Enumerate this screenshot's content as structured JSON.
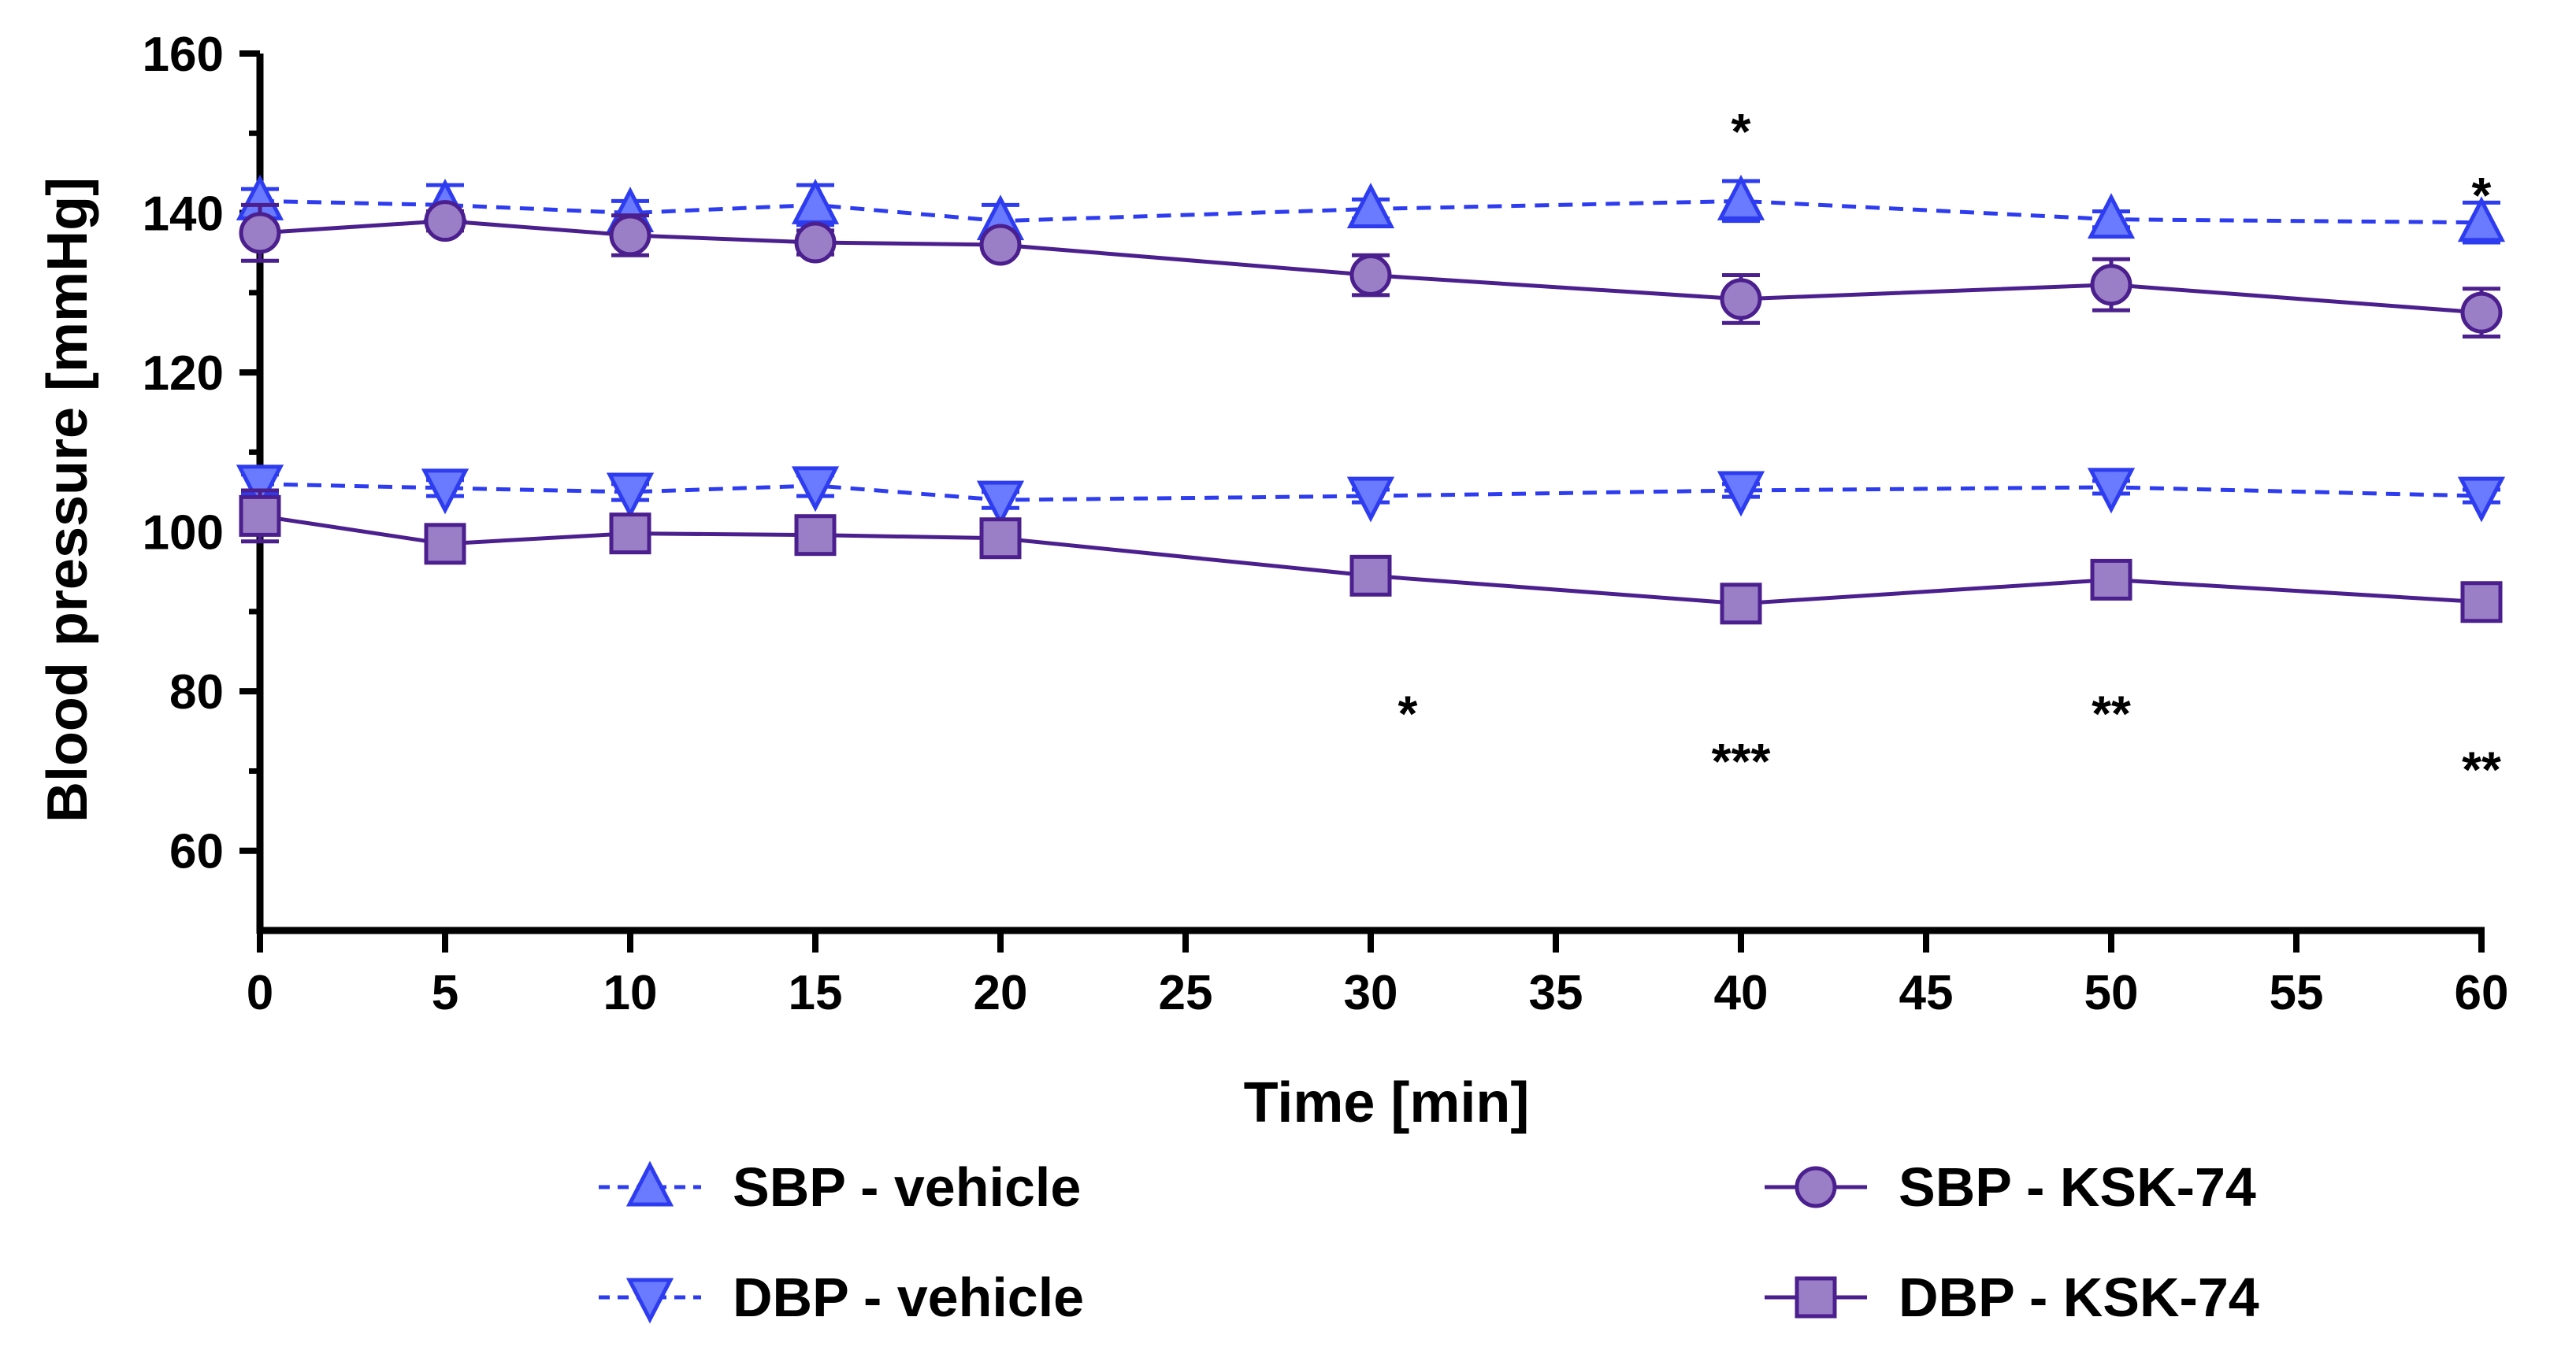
{
  "chart_data": {
    "type": "line",
    "title": "",
    "xlabel": "Time [min]",
    "ylabel": "Blood pressure [mmHg]",
    "xlim": [
      0,
      60
    ],
    "ylim": [
      50,
      160
    ],
    "xticks": [
      0,
      5,
      10,
      15,
      20,
      25,
      30,
      35,
      40,
      45,
      50,
      55,
      60
    ],
    "yticks": [
      60,
      80,
      100,
      120,
      140,
      160
    ],
    "grid": false,
    "legend_position": "bottom",
    "colors": {
      "vehicle": "#2e3cf0",
      "vehicle_fill": "#6a7bff",
      "ksk": "#4b1f8e",
      "ksk_fill": "#9b7fc6"
    },
    "series": [
      {
        "name": "SBP - vehicle",
        "marker": "triangle-up",
        "line": "dashed",
        "x": [
          0,
          5,
          10,
          15,
          20,
          30,
          40,
          50,
          60
        ],
        "values": [
          141.5,
          141,
          140,
          141,
          139,
          140.5,
          141.5,
          139.2,
          138.8
        ],
        "errors": [
          1.5,
          2.5,
          1.5,
          2.5,
          2.0,
          1.2,
          2.5,
          1.0,
          2.5
        ]
      },
      {
        "name": "DBP - vehicle",
        "marker": "triangle-down",
        "line": "dashed",
        "x": [
          0,
          5,
          10,
          15,
          20,
          30,
          40,
          50,
          60
        ],
        "values": [
          106,
          105.5,
          105,
          105.8,
          104,
          104.5,
          105.2,
          105.6,
          104.5
        ],
        "errors": [
          1.2,
          1.0,
          1.0,
          1.3,
          1.0,
          0.8,
          0.8,
          0.8,
          0.8
        ]
      },
      {
        "name": "SBP - KSK-74",
        "marker": "circle",
        "line": "solid",
        "x": [
          0,
          5,
          10,
          15,
          20,
          30,
          40,
          50,
          60
        ],
        "values": [
          137.5,
          139,
          137.2,
          136.3,
          136,
          132.2,
          129.2,
          131,
          127.5
        ],
        "errors": [
          3.5,
          1.2,
          2.5,
          1.5,
          1.0,
          2.5,
          3.0,
          3.2,
          3.0
        ]
      },
      {
        "name": "DBP - KSK-74",
        "marker": "square",
        "line": "solid",
        "x": [
          0,
          5,
          10,
          15,
          20,
          30,
          40,
          50,
          60
        ],
        "values": [
          102,
          98.5,
          99.8,
          99.6,
          99.2,
          94.5,
          91,
          94,
          91.2
        ],
        "errors": [
          3.2,
          1.5,
          1.5,
          1.2,
          1.2,
          1.5,
          1.5,
          1.5,
          1.5
        ]
      }
    ],
    "annotations": [
      {
        "x": 40,
        "y": 151,
        "text": "*"
      },
      {
        "x": 60,
        "y": 143,
        "text": "*"
      },
      {
        "x": 31,
        "y": 78,
        "text": "*"
      },
      {
        "x": 40,
        "y": 72,
        "text": "***"
      },
      {
        "x": 50,
        "y": 78,
        "text": "**"
      },
      {
        "x": 60,
        "y": 71,
        "text": "**"
      }
    ]
  }
}
